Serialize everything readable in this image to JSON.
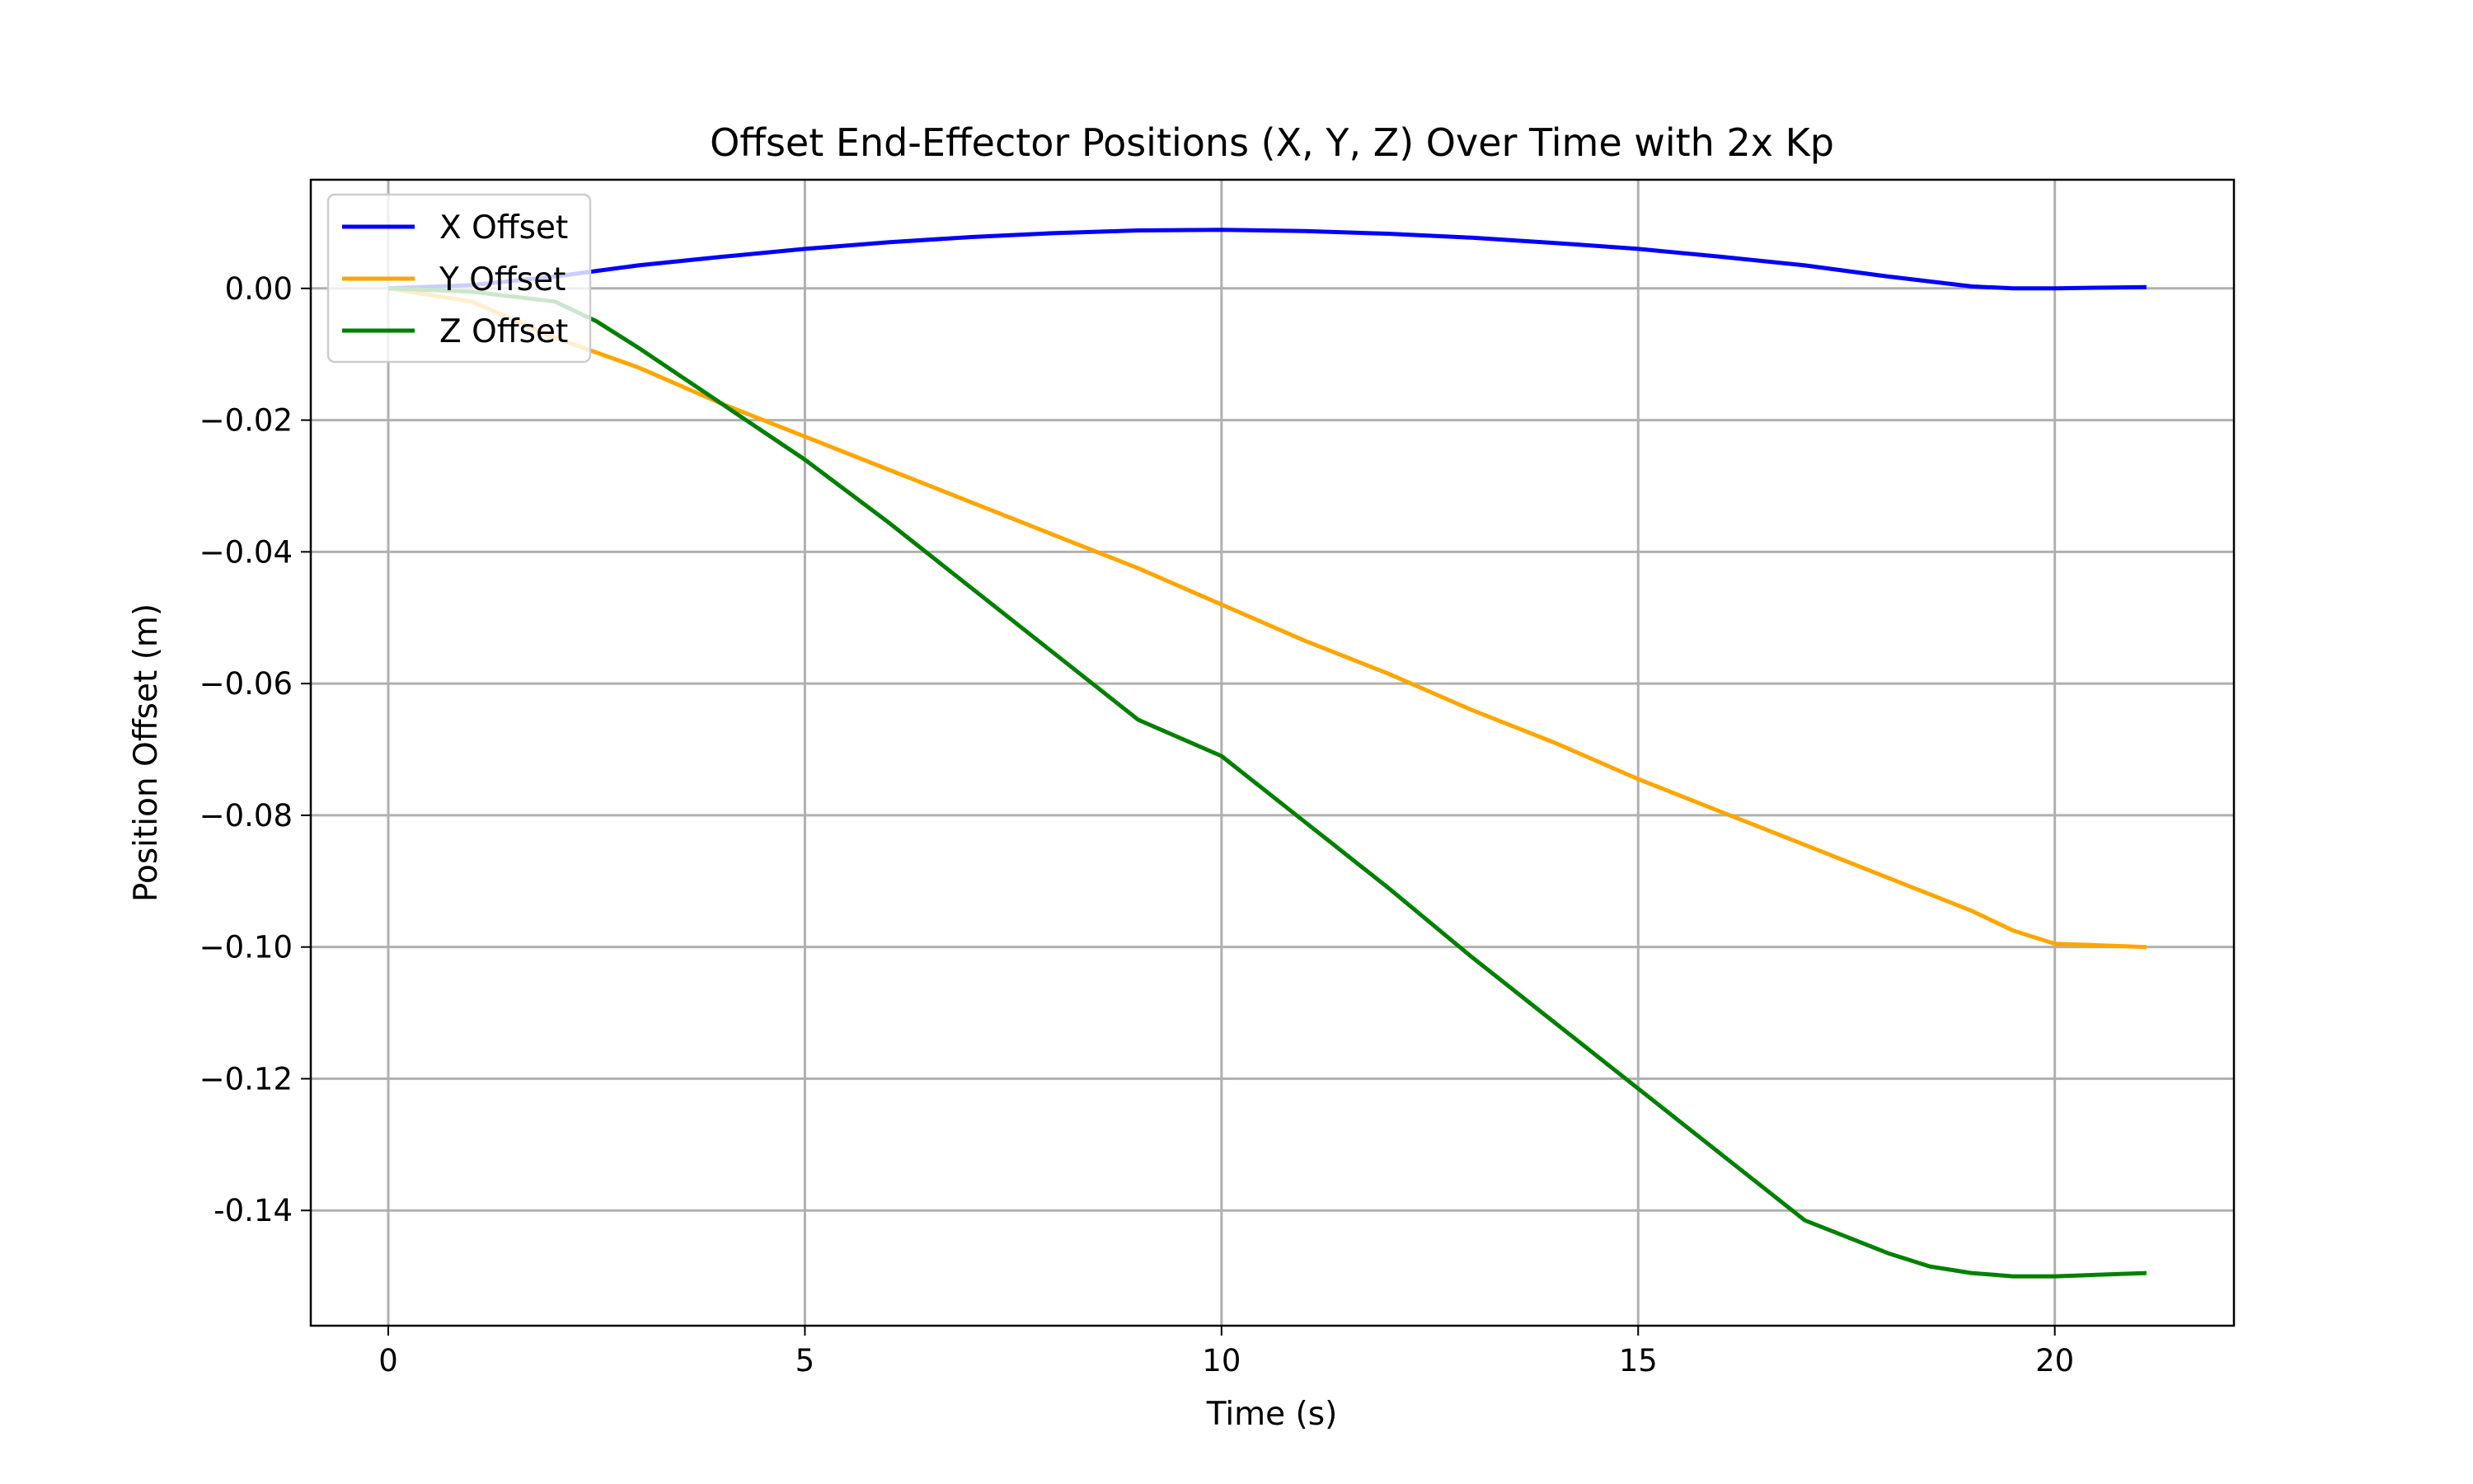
{
  "chart_data": {
    "type": "line",
    "title": "Offset End-Effector Positions (X, Y, Z) Over Time with 2x Kp",
    "xlabel": "Time (s)",
    "ylabel": "Position Offset (m)",
    "xlim": [
      -0.93,
      22.15
    ],
    "ylim": [
      -0.1575,
      0.0165
    ],
    "xticks": [
      0,
      5,
      10,
      15,
      20
    ],
    "xtick_labels": [
      "0",
      "5",
      "10",
      "15",
      "20"
    ],
    "yticks": [
      0.0,
      -0.02,
      -0.04,
      -0.06,
      -0.08,
      -0.1,
      -0.12,
      -0.14
    ],
    "ytick_labels": [
      "0.00",
      "−0.02",
      "−0.04",
      "−0.06",
      "−0.08",
      "−0.10",
      "−0.12",
      "-0.14"
    ],
    "grid": true,
    "legend": "top-left",
    "series": [
      {
        "name": "X Offset",
        "color": "#0000ff",
        "x": [
          0,
          1,
          2,
          3,
          4,
          5,
          6,
          7,
          8,
          9,
          10,
          11,
          12,
          13,
          14,
          15,
          16,
          17,
          18,
          19,
          19.5,
          20,
          20.5,
          21.1
        ],
        "y": [
          0.0,
          0.0005,
          0.0018,
          0.0035,
          0.0048,
          0.006,
          0.007,
          0.0078,
          0.0084,
          0.0088,
          0.0089,
          0.0087,
          0.0083,
          0.0077,
          0.0069,
          0.006,
          0.0048,
          0.0035,
          0.0018,
          0.0003,
          0.0,
          0.0,
          0.0001,
          0.0002
        ]
      },
      {
        "name": "Y Offset",
        "color": "#ffa500",
        "x": [
          0,
          1,
          2,
          3,
          4,
          5,
          6,
          7,
          8,
          9,
          10,
          11,
          12,
          13,
          14,
          15,
          16,
          17,
          18,
          19,
          19.5,
          20,
          21.1
        ],
        "y": [
          0.0,
          -0.002,
          -0.0075,
          -0.012,
          -0.0175,
          -0.0225,
          -0.0275,
          -0.0325,
          -0.0375,
          -0.0425,
          -0.048,
          -0.0535,
          -0.0585,
          -0.064,
          -0.069,
          -0.0745,
          -0.0795,
          -0.0845,
          -0.0895,
          -0.0945,
          -0.0975,
          -0.0995,
          -0.1
        ]
      },
      {
        "name": "Z Offset",
        "color": "#008000",
        "x": [
          0,
          1,
          2,
          2.5,
          3,
          4,
          5,
          6,
          7,
          8,
          9,
          10,
          11,
          12,
          13,
          14,
          15,
          16,
          17,
          18,
          18.5,
          19,
          19.5,
          20,
          21.1
        ],
        "y": [
          0.0,
          -0.0005,
          -0.002,
          -0.005,
          -0.009,
          -0.0175,
          -0.026,
          -0.0355,
          -0.0455,
          -0.0555,
          -0.0655,
          -0.071,
          -0.081,
          -0.091,
          -0.1015,
          -0.1115,
          -0.1215,
          -0.1315,
          -0.1415,
          -0.1465,
          -0.1485,
          -0.1495,
          -0.15,
          -0.15,
          -0.1495
        ]
      }
    ]
  }
}
